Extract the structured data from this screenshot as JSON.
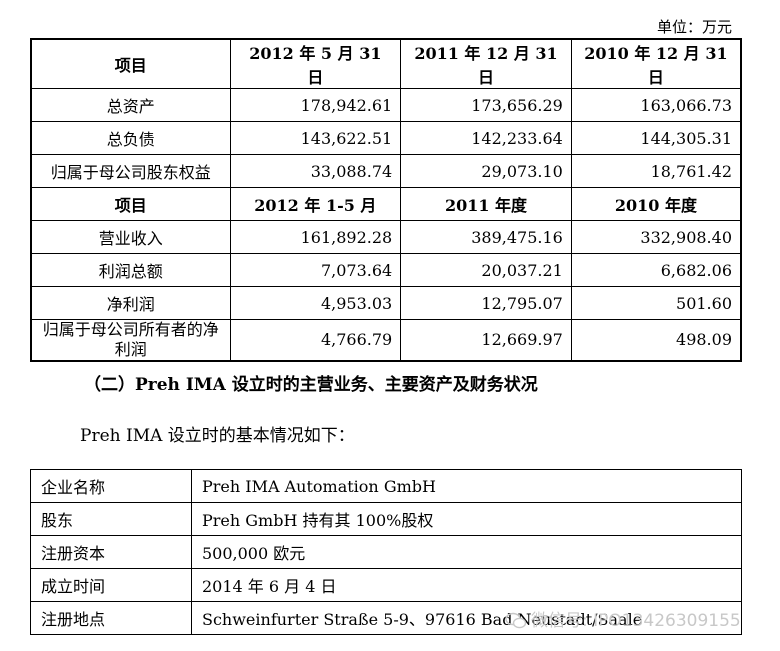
{
  "unit_label": "单位：万元",
  "financial_table": {
    "balance_header": {
      "item": "项目",
      "cols": [
        "2012 年 5 月 31 日",
        "2011 年 12 月 31 日",
        "2010 年 12 月 31 日"
      ]
    },
    "balance_rows": [
      {
        "label": "总资产",
        "values": [
          "178,942.61",
          "173,656.29",
          "163,066.73"
        ]
      },
      {
        "label": "总负债",
        "values": [
          "143,622.51",
          "142,233.64",
          "144,305.31"
        ]
      },
      {
        "label": "归属于母公司股东权益",
        "values": [
          "33,088.74",
          "29,073.10",
          "18,761.42"
        ]
      }
    ],
    "income_header": {
      "item": "项目",
      "cols": [
        "2012 年 1-5 月",
        "2011 年度",
        "2010 年度"
      ]
    },
    "income_rows": [
      {
        "label": "营业收入",
        "values": [
          "161,892.28",
          "389,475.16",
          "332,908.40"
        ]
      },
      {
        "label": "利润总额",
        "values": [
          "7,073.64",
          "20,037.21",
          "6,682.06"
        ]
      },
      {
        "label": "净利润",
        "values": [
          "4,953.03",
          "12,795.07",
          "501.60"
        ]
      },
      {
        "label": "归属于母公司所有者的净利润",
        "values": [
          "4,766.79",
          "12,669.97",
          "498.09"
        ]
      }
    ]
  },
  "section_heading": "（二）Preh IMA 设立时的主营业务、主要资产及财务状况",
  "intro_text": "Preh IMA 设立时的基本情况如下：",
  "info_table": [
    {
      "key": "企业名称",
      "value": "Preh IMA Automation GmbH"
    },
    {
      "key": "股东",
      "value": "Preh GmbH 持有其 100%股权"
    },
    {
      "key": "注册资本",
      "value": "500,000 欧元"
    },
    {
      "key": "成立时间",
      "value": "2014 年 6 月 4 日"
    },
    {
      "key": "注册地点",
      "value": "Schweinfurter Straße 5-9、97616 Bad Neustadt/Saale"
    }
  ],
  "watermark_text": "微信号: IPO13426309155"
}
